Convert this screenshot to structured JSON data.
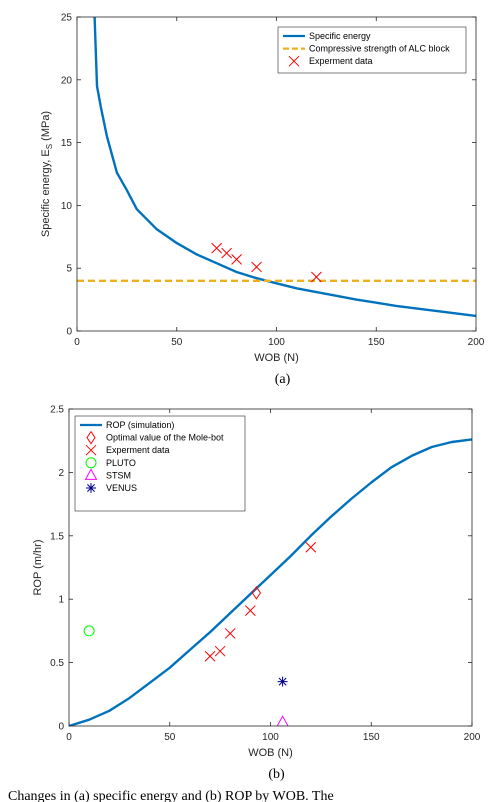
{
  "chart_data": [
    {
      "type": "line",
      "caption": "(a)",
      "xlabel": "WOB (N)",
      "ylabel": "Specific energy, E",
      "ylabel_sub": "S",
      "ylabel_unit": " (MPa)",
      "xlim": [
        0,
        200
      ],
      "ylim": [
        0,
        25
      ],
      "xticks": [
        0,
        50,
        100,
        150,
        200
      ],
      "yticks": [
        0,
        5,
        10,
        15,
        20,
        25
      ],
      "legend_position": "top-right",
      "series": [
        {
          "name": "Specific energy",
          "kind": "line",
          "color": "#0072BD",
          "points": [
            [
              8.8,
              25
            ],
            [
              10,
              19.5
            ],
            [
              12,
              17.8
            ],
            [
              15,
              15.5
            ],
            [
              20,
              12.6
            ],
            [
              25,
              11.2
            ],
            [
              30,
              9.7
            ],
            [
              40,
              8.1
            ],
            [
              50,
              7.0
            ],
            [
              60,
              6.1
            ],
            [
              70,
              5.4
            ],
            [
              80,
              4.7
            ],
            [
              90,
              4.2
            ],
            [
              100,
              3.8
            ],
            [
              110,
              3.4
            ],
            [
              120,
              3.1
            ],
            [
              130,
              2.8
            ],
            [
              140,
              2.5
            ],
            [
              150,
              2.25
            ],
            [
              160,
              2.0
            ],
            [
              170,
              1.8
            ],
            [
              180,
              1.6
            ],
            [
              190,
              1.4
            ],
            [
              200,
              1.2
            ]
          ]
        },
        {
          "name": "Compressive strength of ALC block",
          "kind": "dashed",
          "color": "#EDB120",
          "points": [
            [
              0,
              4.0
            ],
            [
              200,
              4.0
            ]
          ]
        },
        {
          "name": "Experment data",
          "kind": "marker-x",
          "color": "#FF0000",
          "points": [
            [
              70,
              6.6
            ],
            [
              75,
              6.2
            ],
            [
              80,
              5.7
            ],
            [
              90,
              5.1
            ],
            [
              120,
              4.3
            ]
          ]
        }
      ]
    },
    {
      "type": "line",
      "caption": "(b)",
      "xlabel": "WOB (N)",
      "ylabel": "ROP (m/hr)",
      "xlim": [
        0,
        200
      ],
      "ylim": [
        0,
        2.5
      ],
      "xticks": [
        0,
        50,
        100,
        150,
        200
      ],
      "yticks": [
        0,
        0.5,
        1,
        1.5,
        2,
        2.5
      ],
      "legend_position": "top-left",
      "series": [
        {
          "name": "ROP (simulation)",
          "kind": "line",
          "color": "#0072BD",
          "points": [
            [
              0,
              0
            ],
            [
              10,
              0.05
            ],
            [
              20,
              0.12
            ],
            [
              30,
              0.22
            ],
            [
              40,
              0.34
            ],
            [
              50,
              0.46
            ],
            [
              60,
              0.6
            ],
            [
              70,
              0.74
            ],
            [
              80,
              0.89
            ],
            [
              90,
              1.04
            ],
            [
              100,
              1.19
            ],
            [
              110,
              1.34
            ],
            [
              120,
              1.5
            ],
            [
              130,
              1.65
            ],
            [
              140,
              1.79
            ],
            [
              150,
              1.92
            ],
            [
              160,
              2.04
            ],
            [
              170,
              2.13
            ],
            [
              180,
              2.2
            ],
            [
              190,
              2.24
            ],
            [
              200,
              2.26
            ]
          ]
        },
        {
          "name": "Optimal value of the Mole-bot",
          "kind": "marker-diamond",
          "color": "#FF0000",
          "points": [
            [
              93,
              1.05
            ]
          ]
        },
        {
          "name": "Experment data",
          "kind": "marker-x",
          "color": "#FF0000",
          "points": [
            [
              70,
              0.55
            ],
            [
              75,
              0.59
            ],
            [
              80,
              0.73
            ],
            [
              90,
              0.91
            ],
            [
              120,
              1.41
            ]
          ]
        },
        {
          "name": "PLUTO",
          "kind": "marker-circle",
          "color": "#00FF00",
          "points": [
            [
              10,
              0.75
            ]
          ]
        },
        {
          "name": "STSM",
          "kind": "marker-triangle",
          "color": "#FF00FF",
          "points": [
            [
              106,
              0.03
            ]
          ]
        },
        {
          "name": "VENUS",
          "kind": "marker-star",
          "color": "#00008B",
          "points": [
            [
              106,
              0.35
            ]
          ]
        }
      ]
    }
  ],
  "footer_text": "Changes in (a) specific energy and (b) ROP by WOB. The"
}
